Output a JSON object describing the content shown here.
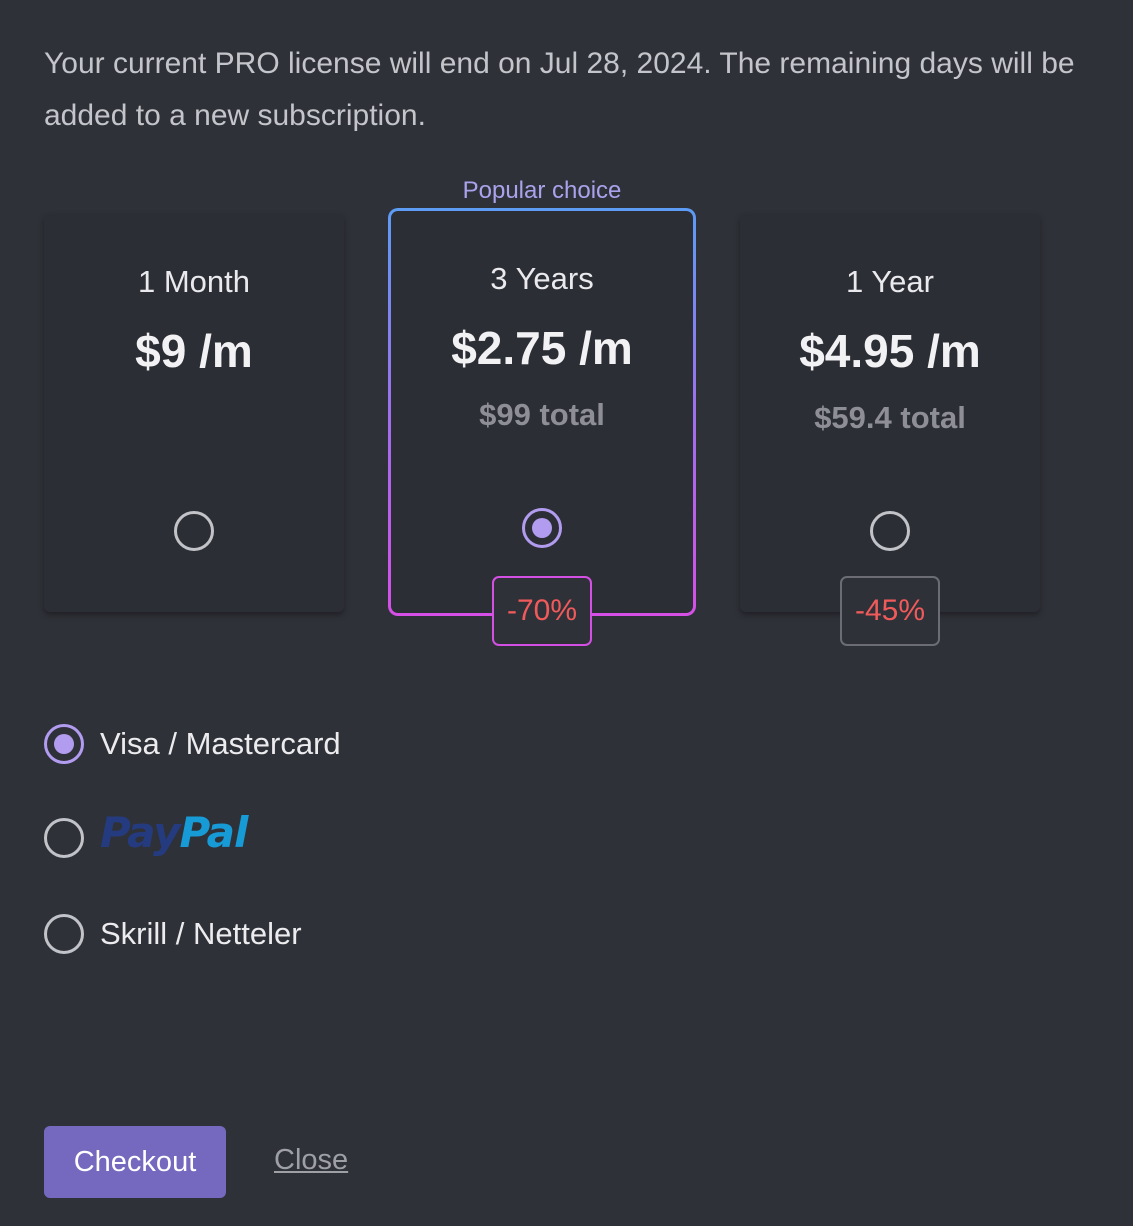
{
  "notice": "Your current PRO license will end on Jul 28, 2024. The remaining days will be added to a new subscription.",
  "popular_label": "Popular choice",
  "plans": [
    {
      "name": "1 Month",
      "price": "$9 /m",
      "total": "",
      "selected": false,
      "discount": ""
    },
    {
      "name": "3 Years",
      "price": "$2.75 /m",
      "total": "$99 total",
      "selected": true,
      "discount": "-70%"
    },
    {
      "name": "1 Year",
      "price": "$4.95 /m",
      "total": "$59.4 total",
      "selected": false,
      "discount": "-45%"
    }
  ],
  "payment_methods": [
    {
      "label": "Visa / Mastercard",
      "selected": true
    },
    {
      "label": "PayPal",
      "logo_part1": "Pay",
      "logo_part2": "Pal",
      "selected": false
    },
    {
      "label": "Skrill / Netteler",
      "selected": false
    }
  ],
  "actions": {
    "checkout_label": "Checkout",
    "close_label": "Close"
  },
  "colors": {
    "background": "#2f3139",
    "accent": "#7469bf",
    "radio_selected": "#b19cf0",
    "discount_text": "#f05a5a",
    "popular_gradient_top": "#5c9cf4",
    "popular_gradient_bottom": "#d64fe6",
    "paypal_dark": "#253b80",
    "paypal_light": "#179bd7"
  }
}
